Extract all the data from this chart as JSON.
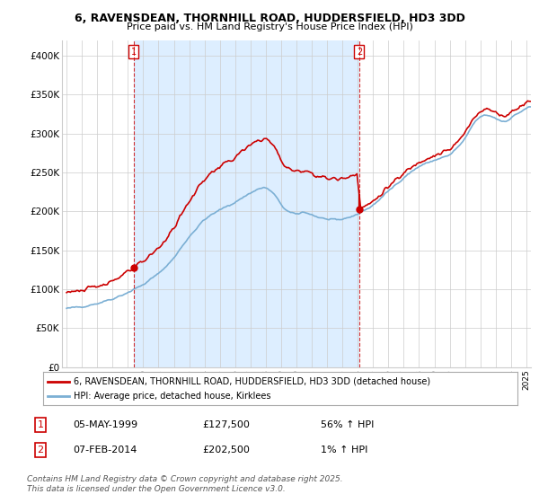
{
  "title_line1": "6, RAVENSDEAN, THORNHILL ROAD, HUDDERSFIELD, HD3 3DD",
  "title_line2": "Price paid vs. HM Land Registry's House Price Index (HPI)",
  "ylim": [
    0,
    420000
  ],
  "yticks": [
    0,
    50000,
    100000,
    150000,
    200000,
    250000,
    300000,
    350000,
    400000
  ],
  "ytick_labels": [
    "£0",
    "£50K",
    "£100K",
    "£150K",
    "£200K",
    "£250K",
    "£300K",
    "£350K",
    "£400K"
  ],
  "sale1_date": 1999.37,
  "sale1_price": 127500,
  "sale1_label": "1",
  "sale2_date": 2014.1,
  "sale2_price": 202500,
  "sale2_label": "2",
  "legend_house": "6, RAVENSDEAN, THORNHILL ROAD, HUDDERSFIELD, HD3 3DD (detached house)",
  "legend_hpi": "HPI: Average price, detached house, Kirklees",
  "footnote": "Contains HM Land Registry data © Crown copyright and database right 2025.\nThis data is licensed under the Open Government Licence v3.0.",
  "house_color": "#cc0000",
  "hpi_color": "#7bafd4",
  "shade_color": "#ddeeff",
  "background_color": "#ffffff",
  "grid_color": "#cccccc",
  "ann1_date": "05-MAY-1999",
  "ann1_price": "£127,500",
  "ann1_hpi": "56% ↑ HPI",
  "ann2_date": "07-FEB-2014",
  "ann2_price": "£202,500",
  "ann2_hpi": "1% ↑ HPI"
}
